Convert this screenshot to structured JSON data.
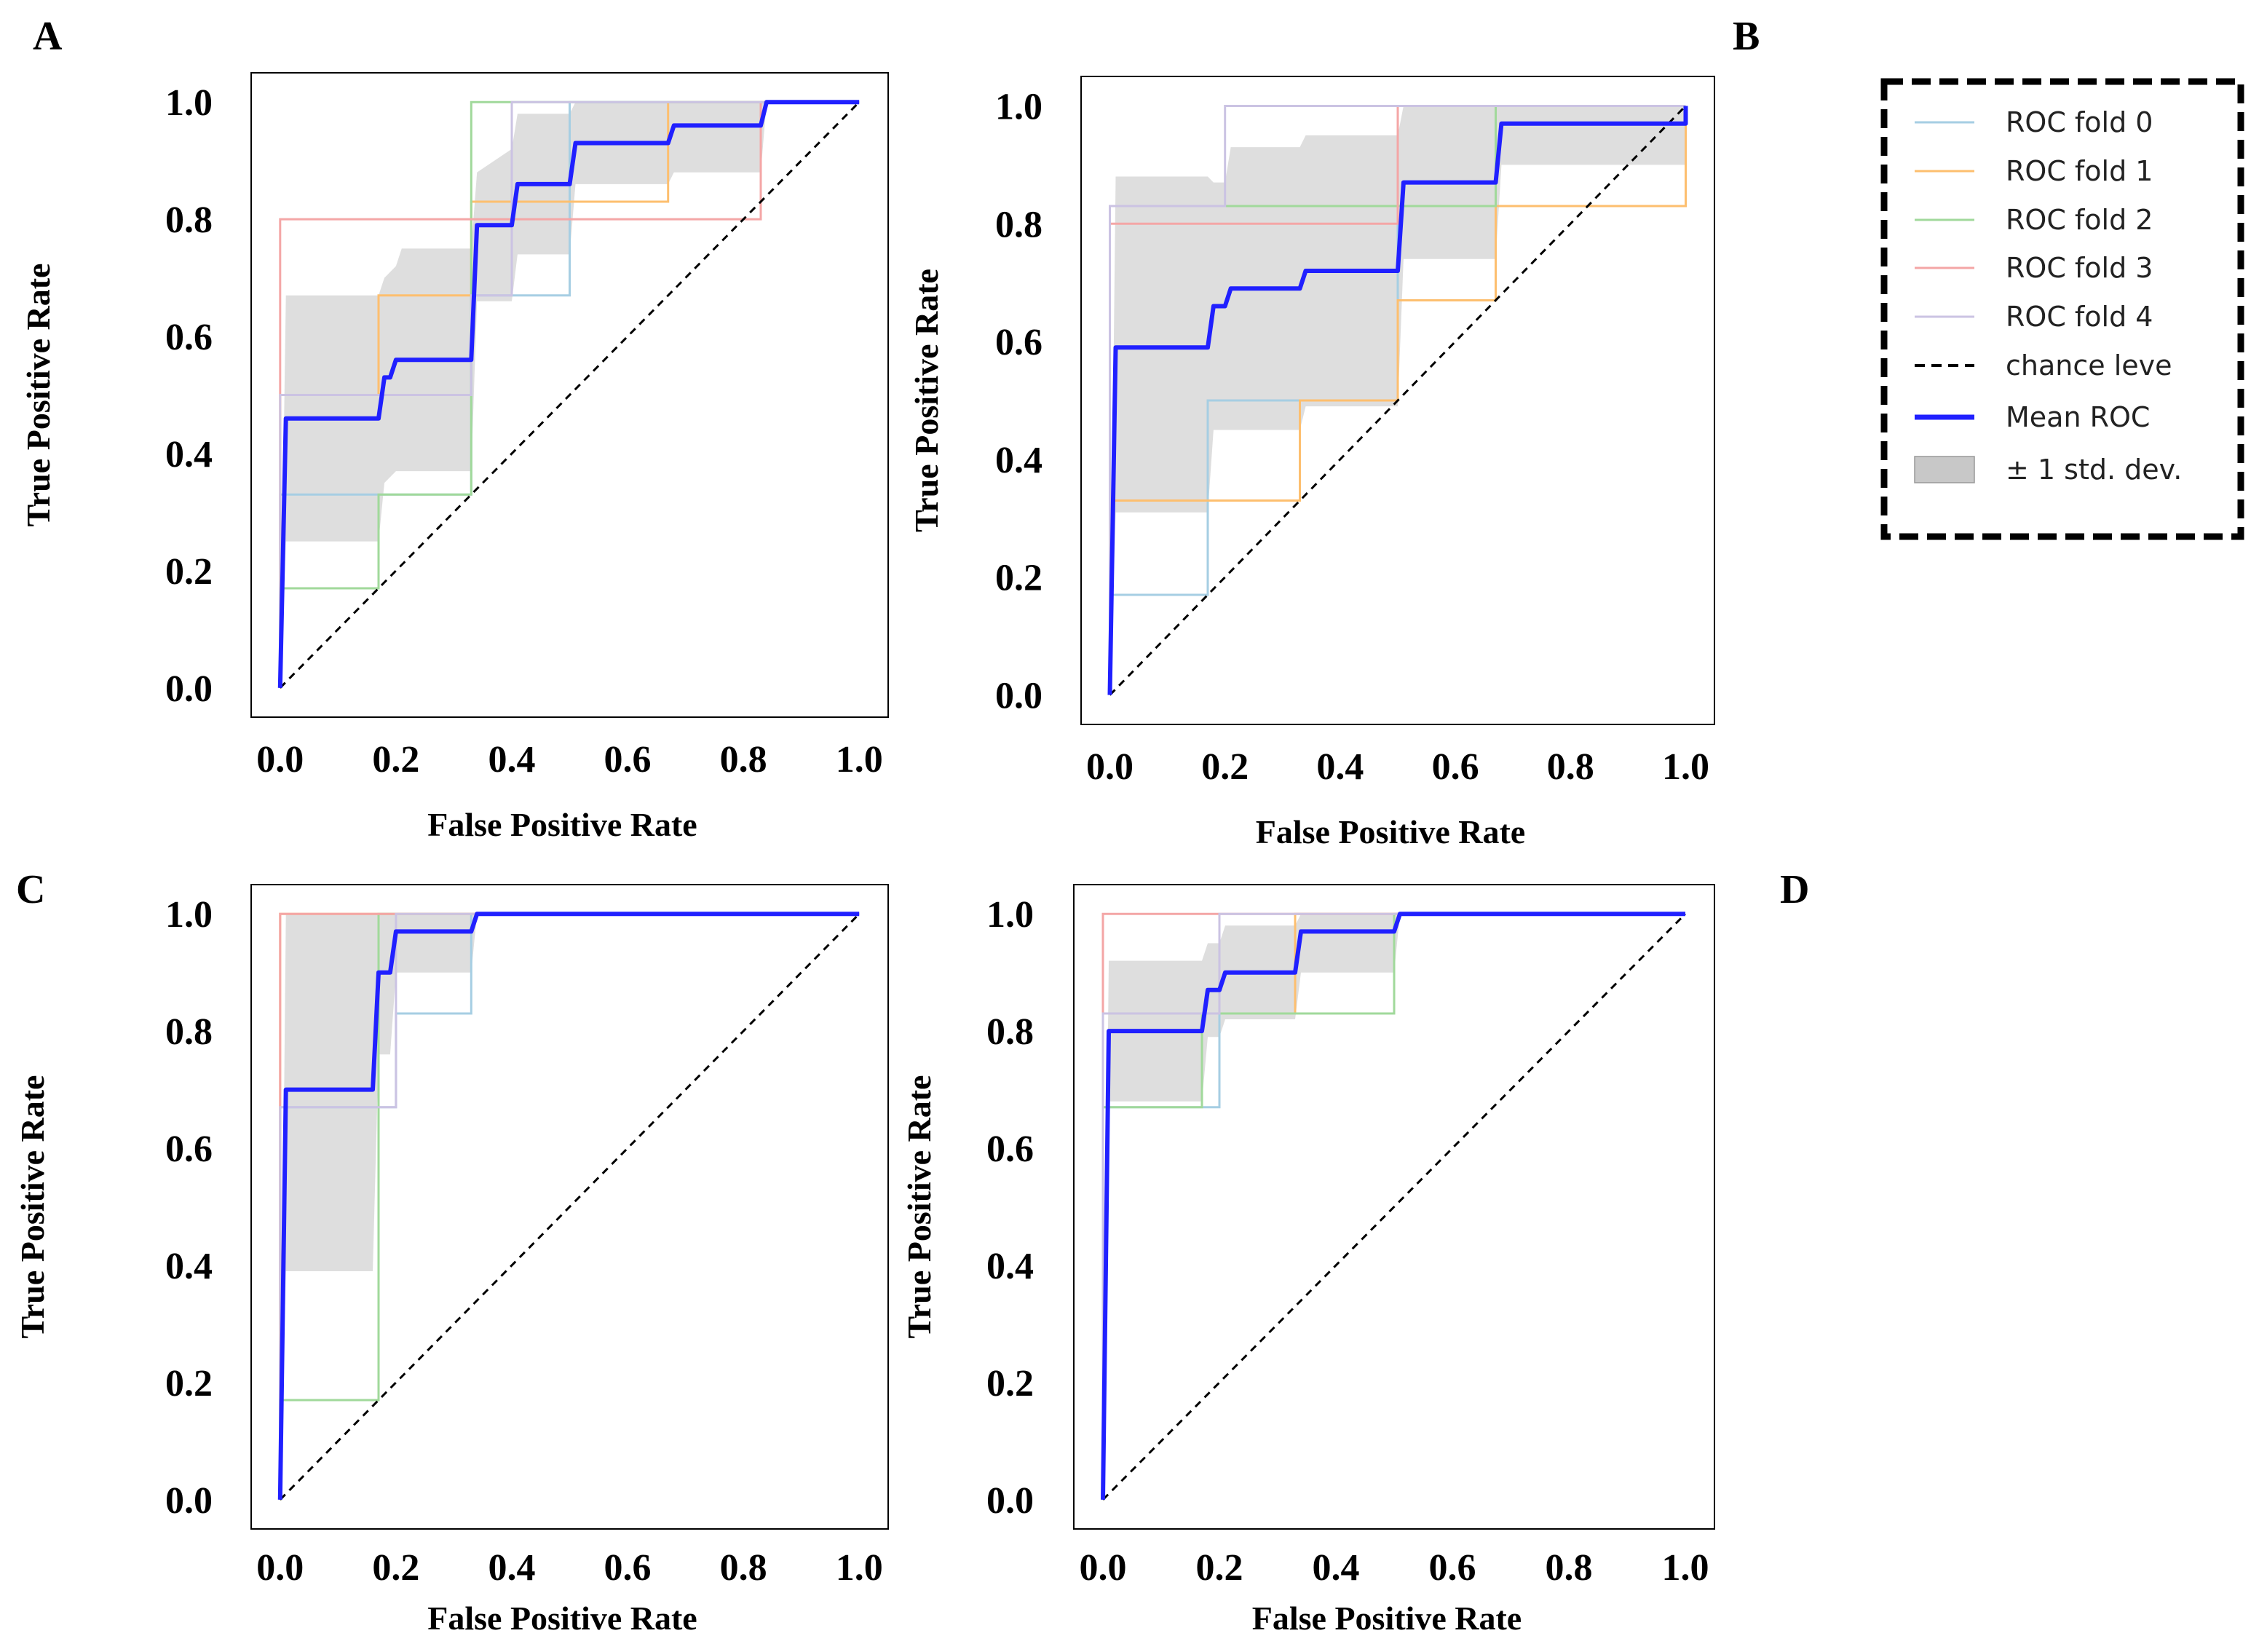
{
  "legend": {
    "entries": [
      {
        "label": "ROC fold 0",
        "kind": "line",
        "color": "#a6cee3"
      },
      {
        "label": "ROC fold 1",
        "kind": "line",
        "color": "#fdbf6f"
      },
      {
        "label": "ROC fold 2",
        "kind": "line",
        "color": "#a1d99b"
      },
      {
        "label": "ROC fold 3",
        "kind": "line",
        "color": "#f4a6a6"
      },
      {
        "label": "ROC fold 4",
        "kind": "line",
        "color": "#cbc3e3"
      },
      {
        "label": "chance leve",
        "kind": "dashed",
        "color": "#000000"
      },
      {
        "label": "Mean ROC",
        "kind": "mean",
        "color": "#2020ff"
      },
      {
        "label": "± 1 std. dev.",
        "kind": "band",
        "color": "#c8c8c8"
      }
    ]
  },
  "chart_data": [
    {
      "panel": "A",
      "type": "line",
      "xlabel": "False Positive Rate",
      "ylabel": "True Positive Rate",
      "xlim": [
        -0.05,
        1.05
      ],
      "ylim": [
        -0.05,
        1.05
      ],
      "xticks": [
        "0.0",
        "0.2",
        "0.4",
        "0.6",
        "0.8",
        "1.0"
      ],
      "yticks": [
        "0.0",
        "0.2",
        "0.4",
        "0.6",
        "0.8",
        "1.0"
      ],
      "series": [
        {
          "name": "ROC fold 0",
          "x": [
            0,
            0,
            0.17,
            0.17,
            0.33,
            0.33,
            0.5,
            0.5,
            1
          ],
          "y": [
            0,
            0.33,
            0.33,
            0.33,
            0.33,
            0.67,
            0.67,
            1,
            1
          ]
        },
        {
          "name": "ROC fold 1",
          "x": [
            0,
            0,
            0.17,
            0.17,
            0.33,
            0.33,
            0.67,
            0.67,
            1
          ],
          "y": [
            0,
            0.5,
            0.5,
            0.67,
            0.67,
            0.83,
            0.83,
            1,
            1
          ]
        },
        {
          "name": "ROC fold 2",
          "x": [
            0,
            0,
            0.17,
            0.17,
            0.33,
            0.33,
            1
          ],
          "y": [
            0,
            0.17,
            0.17,
            0.33,
            0.33,
            1,
            1
          ]
        },
        {
          "name": "ROC fold 3",
          "x": [
            0,
            0,
            0.83,
            0.83,
            1
          ],
          "y": [
            0,
            0.8,
            0.8,
            1,
            1
          ]
        },
        {
          "name": "ROC fold 4",
          "x": [
            0,
            0,
            0.33,
            0.33,
            0.4,
            0.4,
            1
          ],
          "y": [
            0,
            0.5,
            0.5,
            0.67,
            0.67,
            1,
            1
          ]
        },
        {
          "name": "Mean ROC",
          "x": [
            0,
            0.01,
            0.17,
            0.18,
            0.19,
            0.2,
            0.21,
            0.33,
            0.34,
            0.4,
            0.41,
            0.5,
            0.51,
            0.67,
            0.68,
            0.83,
            0.84,
            1
          ],
          "y": [
            0,
            0.46,
            0.46,
            0.53,
            0.53,
            0.56,
            0.56,
            0.56,
            0.79,
            0.79,
            0.86,
            0.86,
            0.93,
            0.93,
            0.96,
            0.96,
            1,
            1
          ]
        },
        {
          "name": "std upper",
          "x": [
            0,
            0.01,
            0.17,
            0.18,
            0.2,
            0.21,
            0.33,
            0.34,
            0.4,
            0.41,
            0.5,
            0.51,
            0.67,
            0.68,
            0.83,
            0.84,
            1
          ],
          "y": [
            0,
            0.67,
            0.67,
            0.7,
            0.72,
            0.75,
            0.75,
            0.88,
            0.92,
            0.98,
            0.98,
            1,
            1,
            1,
            1,
            1,
            1
          ]
        },
        {
          "name": "std lower",
          "x": [
            0,
            0.01,
            0.17,
            0.18,
            0.2,
            0.21,
            0.33,
            0.34,
            0.4,
            0.41,
            0.5,
            0.51,
            0.67,
            0.68,
            0.83,
            0.84,
            1
          ],
          "y": [
            0,
            0.25,
            0.25,
            0.35,
            0.37,
            0.37,
            0.37,
            0.66,
            0.66,
            0.74,
            0.74,
            0.86,
            0.86,
            0.88,
            0.88,
            1,
            1
          ]
        }
      ]
    },
    {
      "panel": "B",
      "type": "line",
      "xlabel": "False Positive Rate",
      "ylabel": "True Positive Rate",
      "xlim": [
        -0.05,
        1.05
      ],
      "ylim": [
        -0.05,
        1.05
      ],
      "xticks": [
        "0.0",
        "0.2",
        "0.4",
        "0.6",
        "0.8",
        "1.0"
      ],
      "yticks": [
        "0.0",
        "0.2",
        "0.4",
        "0.6",
        "0.8",
        "1.0"
      ],
      "series": [
        {
          "name": "ROC fold 0",
          "x": [
            0,
            0,
            0.17,
            0.17,
            0.5,
            0.5,
            0.67,
            0.67,
            1
          ],
          "y": [
            0,
            0.17,
            0.17,
            0.5,
            0.5,
            0.83,
            0.83,
            1,
            1
          ]
        },
        {
          "name": "ROC fold 1",
          "x": [
            0,
            0,
            0.33,
            0.33,
            0.5,
            0.5,
            0.67,
            0.67,
            1,
            1
          ],
          "y": [
            0,
            0.33,
            0.33,
            0.5,
            0.5,
            0.67,
            0.67,
            0.83,
            0.83,
            1
          ]
        },
        {
          "name": "ROC fold 2",
          "x": [
            0,
            0,
            0.67,
            0.67,
            1
          ],
          "y": [
            0,
            0.83,
            0.83,
            1,
            1
          ]
        },
        {
          "name": "ROC fold 3",
          "x": [
            0,
            0,
            0.5,
            0.5,
            1
          ],
          "y": [
            0,
            0.8,
            0.8,
            1,
            1
          ]
        },
        {
          "name": "ROC fold 4",
          "x": [
            0,
            0,
            0.2,
            0.2,
            1
          ],
          "y": [
            0,
            0.83,
            0.83,
            1,
            1
          ]
        },
        {
          "name": "Mean ROC",
          "x": [
            0,
            0.01,
            0.17,
            0.18,
            0.2,
            0.21,
            0.33,
            0.34,
            0.5,
            0.51,
            0.67,
            0.68,
            1,
            1
          ],
          "y": [
            0,
            0.59,
            0.59,
            0.66,
            0.66,
            0.69,
            0.69,
            0.72,
            0.72,
            0.87,
            0.87,
            0.97,
            0.97,
            1
          ]
        },
        {
          "name": "std upper",
          "x": [
            0,
            0.01,
            0.17,
            0.18,
            0.2,
            0.21,
            0.33,
            0.34,
            0.5,
            0.51,
            0.67,
            0.68,
            1
          ],
          "y": [
            0,
            0.88,
            0.88,
            0.87,
            0.87,
            0.93,
            0.93,
            0.95,
            0.95,
            1,
            1,
            1,
            1
          ]
        },
        {
          "name": "std lower",
          "x": [
            0,
            0.01,
            0.17,
            0.18,
            0.2,
            0.21,
            0.33,
            0.34,
            0.5,
            0.51,
            0.67,
            0.68,
            1
          ],
          "y": [
            0,
            0.31,
            0.31,
            0.45,
            0.45,
            0.45,
            0.45,
            0.49,
            0.49,
            0.74,
            0.74,
            0.9,
            0.9
          ]
        }
      ]
    },
    {
      "panel": "C",
      "type": "line",
      "xlabel": "False Positive Rate",
      "ylabel": "True Positive Rate",
      "xlim": [
        -0.05,
        1.05
      ],
      "ylim": [
        -0.05,
        1.05
      ],
      "xticks": [
        "0.0",
        "0.2",
        "0.4",
        "0.6",
        "0.8",
        "1.0"
      ],
      "yticks": [
        "0.0",
        "0.2",
        "0.4",
        "0.6",
        "0.8",
        "1.0"
      ],
      "series": [
        {
          "name": "ROC fold 0",
          "x": [
            0,
            0,
            0.2,
            0.2,
            0.33,
            0.33,
            1
          ],
          "y": [
            0,
            0.67,
            0.67,
            0.83,
            0.83,
            1,
            1
          ]
        },
        {
          "name": "ROC fold 1",
          "x": [
            0,
            0,
            1
          ],
          "y": [
            0,
            1,
            1
          ]
        },
        {
          "name": "ROC fold 2",
          "x": [
            0,
            0,
            0.17,
            0.17,
            1
          ],
          "y": [
            0,
            0.17,
            0.17,
            1,
            1
          ]
        },
        {
          "name": "ROC fold 3",
          "x": [
            0,
            0,
            1
          ],
          "y": [
            0,
            1,
            1
          ]
        },
        {
          "name": "ROC fold 4",
          "x": [
            0,
            0,
            0.2,
            0.2,
            1
          ],
          "y": [
            0,
            0.67,
            0.67,
            1,
            1
          ]
        },
        {
          "name": "Mean ROC",
          "x": [
            0,
            0.01,
            0.16,
            0.17,
            0.19,
            0.2,
            0.33,
            0.34,
            1
          ],
          "y": [
            0,
            0.7,
            0.7,
            0.9,
            0.9,
            0.97,
            0.97,
            1,
            1
          ]
        },
        {
          "name": "std upper",
          "x": [
            0,
            0.01,
            0.16,
            0.17,
            0.19,
            0.2,
            0.33,
            0.34,
            1
          ],
          "y": [
            0,
            1,
            1,
            1,
            1,
            1,
            1,
            1,
            1
          ]
        },
        {
          "name": "std lower",
          "x": [
            0,
            0.01,
            0.16,
            0.17,
            0.19,
            0.2,
            0.33,
            0.34,
            1
          ],
          "y": [
            0,
            0.39,
            0.39,
            0.76,
            0.76,
            0.9,
            0.9,
            1,
            1
          ]
        }
      ]
    },
    {
      "panel": "D",
      "type": "line",
      "xlabel": "False Positive Rate",
      "ylabel": "True Positive Rate",
      "xlim": [
        -0.05,
        1.05
      ],
      "ylim": [
        -0.05,
        1.05
      ],
      "xticks": [
        "0.0",
        "0.2",
        "0.4",
        "0.6",
        "0.8",
        "1.0"
      ],
      "yticks": [
        "0.0",
        "0.2",
        "0.4",
        "0.6",
        "0.8",
        "1.0"
      ],
      "series": [
        {
          "name": "ROC fold 0",
          "x": [
            0,
            0,
            0.2,
            0.2,
            0.33,
            0.33,
            1
          ],
          "y": [
            0,
            0.67,
            0.67,
            0.83,
            0.83,
            1,
            1
          ]
        },
        {
          "name": "ROC fold 1",
          "x": [
            0,
            0,
            0.33,
            0.33,
            1
          ],
          "y": [
            0,
            0.83,
            0.83,
            1,
            1
          ]
        },
        {
          "name": "ROC fold 2",
          "x": [
            0,
            0,
            0.17,
            0.17,
            0.5,
            0.5,
            1
          ],
          "y": [
            0,
            0.67,
            0.67,
            0.83,
            0.83,
            1,
            1
          ]
        },
        {
          "name": "ROC fold 3",
          "x": [
            0,
            0,
            1
          ],
          "y": [
            0,
            1,
            1
          ]
        },
        {
          "name": "ROC fold 4",
          "x": [
            0,
            0,
            0.2,
            0.2,
            1
          ],
          "y": [
            0,
            0.83,
            0.83,
            1,
            1
          ]
        },
        {
          "name": "Mean ROC",
          "x": [
            0,
            0.01,
            0.17,
            0.18,
            0.2,
            0.21,
            0.33,
            0.34,
            0.5,
            0.51,
            1
          ],
          "y": [
            0,
            0.8,
            0.8,
            0.87,
            0.87,
            0.9,
            0.9,
            0.97,
            0.97,
            1,
            1
          ]
        },
        {
          "name": "std upper",
          "x": [
            0,
            0.01,
            0.17,
            0.18,
            0.2,
            0.21,
            0.33,
            0.34,
            0.5,
            0.51,
            1
          ],
          "y": [
            0,
            0.92,
            0.92,
            0.95,
            0.95,
            0.98,
            0.98,
            1,
            1,
            1,
            1
          ]
        },
        {
          "name": "std lower",
          "x": [
            0,
            0.01,
            0.17,
            0.18,
            0.2,
            0.21,
            0.33,
            0.34,
            0.5,
            0.51,
            1
          ],
          "y": [
            0,
            0.68,
            0.68,
            0.79,
            0.79,
            0.82,
            0.82,
            0.9,
            0.9,
            1,
            1
          ]
        }
      ]
    }
  ]
}
